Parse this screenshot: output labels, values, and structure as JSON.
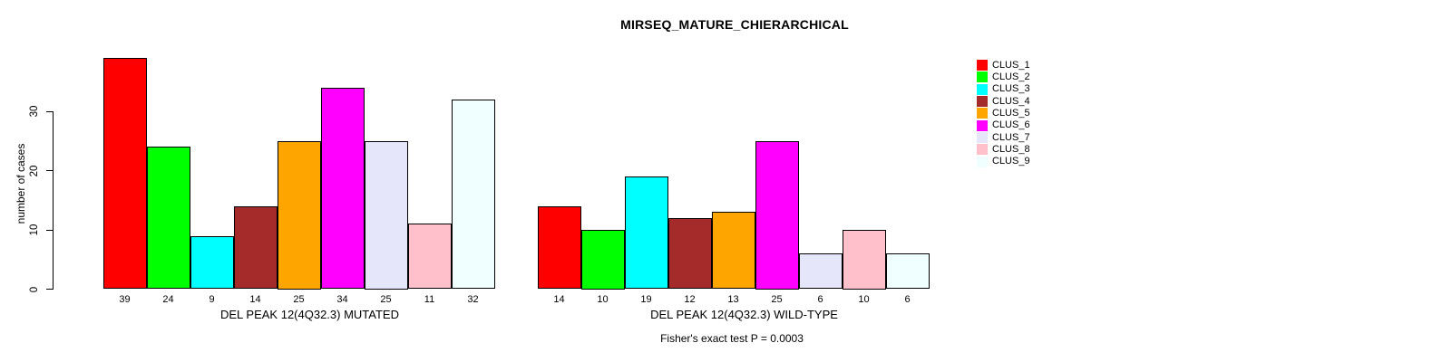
{
  "title": "MIRSEQ_MATURE_CHIERARCHICAL",
  "chart_data": {
    "type": "bar",
    "title": "MIRSEQ_MATURE_CHIERARCHICAL",
    "ylabel": "number of cases",
    "ylim": [
      0,
      39
    ],
    "yticks": [
      0,
      10,
      20,
      30
    ],
    "grid": false,
    "legend_position": "right",
    "categories": [
      "CLUS_1",
      "CLUS_2",
      "CLUS_3",
      "CLUS_4",
      "CLUS_5",
      "CLUS_6",
      "CLUS_7",
      "CLUS_8",
      "CLUS_9"
    ],
    "colors": [
      "#FF0000",
      "#00FF00",
      "#00FFFF",
      "#A52A2A",
      "#FFA500",
      "#FF00FF",
      "#E6E6FA",
      "#FFC0CB",
      "#F0FFFF"
    ],
    "bar_border_color": "#000000",
    "bar_value_labels": true,
    "series": [
      {
        "name": "DEL PEAK 12(4Q32.3) MUTATED",
        "values": [
          39,
          24,
          9,
          14,
          25,
          34,
          25,
          11,
          32
        ]
      },
      {
        "name": "DEL PEAK 12(4Q32.3) WILD-TYPE",
        "values": [
          14,
          10,
          19,
          12,
          13,
          25,
          6,
          10,
          6
        ]
      }
    ],
    "annotation": "Fisher's exact test P = 0.0003"
  }
}
